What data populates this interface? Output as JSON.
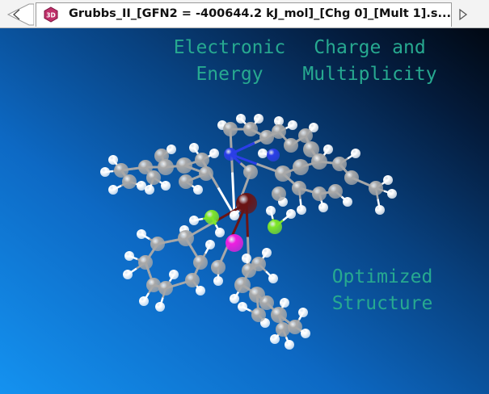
{
  "window": {
    "tab_title": "Grubbs_II_[GFN2 = -400644.2 kJ_mol]_[Chg 0]_[Mult 1].s...",
    "tab_icon": "3d-molecule-icon",
    "nav_left_icon": "tab-scroll-left-icon",
    "nav_right_icon": "tab-scroll-right-icon"
  },
  "viewport": {
    "labels": {
      "energy": "Electronic\nEnergy",
      "charge": "Charge and\nMultiplicity",
      "structure": "Optimized\nStructure"
    },
    "label_color": "#27a990"
  },
  "atom_colors": {
    "C": "#a8a8a8",
    "H": "#ffffff",
    "N": "#2b3ee8",
    "Ru": "#6a1414",
    "Cl": "#7fe629",
    "P": "#f01ee0"
  }
}
